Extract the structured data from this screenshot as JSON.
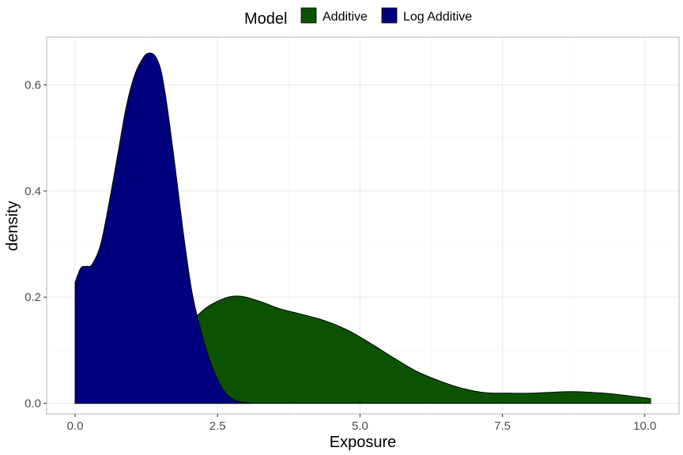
{
  "chart_data": {
    "type": "area",
    "subtype": "density",
    "xlabel": "Exposure",
    "ylabel": "density",
    "xlim": [
      -0.5,
      10.6
    ],
    "ylim": [
      -0.02,
      0.69
    ],
    "x_ticks": [
      0.0,
      2.5,
      5.0,
      7.5,
      10.0
    ],
    "x_tick_labels": [
      "0.0",
      "2.5",
      "5.0",
      "7.5",
      "10.0"
    ],
    "y_ticks": [
      0.0,
      0.2,
      0.4,
      0.6
    ],
    "y_tick_labels": [
      "0.0",
      "0.2",
      "0.4",
      "0.6"
    ],
    "grid": true,
    "legend": {
      "title": "Model",
      "position": "top",
      "entries": [
        "Additive",
        "Log Additive"
      ]
    },
    "series": [
      {
        "name": "Additive",
        "color": "#0b5300",
        "x": [
          0.0,
          0.3,
          0.6,
          1.0,
          1.5,
          2.0,
          2.3,
          2.6,
          2.8,
          3.0,
          3.3,
          3.6,
          4.0,
          4.4,
          4.8,
          5.2,
          5.6,
          6.0,
          6.4,
          6.8,
          7.2,
          7.6,
          8.0,
          8.4,
          8.7,
          9.0,
          9.4,
          9.8,
          10.1
        ],
        "y": [
          0.04,
          0.042,
          0.048,
          0.065,
          0.1,
          0.15,
          0.18,
          0.197,
          0.202,
          0.2,
          0.19,
          0.178,
          0.167,
          0.155,
          0.137,
          0.112,
          0.085,
          0.06,
          0.042,
          0.028,
          0.02,
          0.019,
          0.019,
          0.021,
          0.022,
          0.021,
          0.018,
          0.013,
          0.009
        ]
      },
      {
        "name": "Log Additive",
        "color": "#00007f",
        "x": [
          0.0,
          0.1,
          0.2,
          0.3,
          0.45,
          0.6,
          0.75,
          0.9,
          1.05,
          1.2,
          1.3,
          1.4,
          1.5,
          1.6,
          1.75,
          1.9,
          2.05,
          2.2,
          2.35,
          2.5,
          2.65,
          2.8,
          2.95,
          3.1
        ],
        "y": [
          0.228,
          0.255,
          0.258,
          0.262,
          0.3,
          0.38,
          0.47,
          0.56,
          0.62,
          0.652,
          0.66,
          0.655,
          0.63,
          0.57,
          0.45,
          0.32,
          0.21,
          0.14,
          0.085,
          0.045,
          0.018,
          0.006,
          0.002,
          0.0
        ]
      }
    ]
  }
}
